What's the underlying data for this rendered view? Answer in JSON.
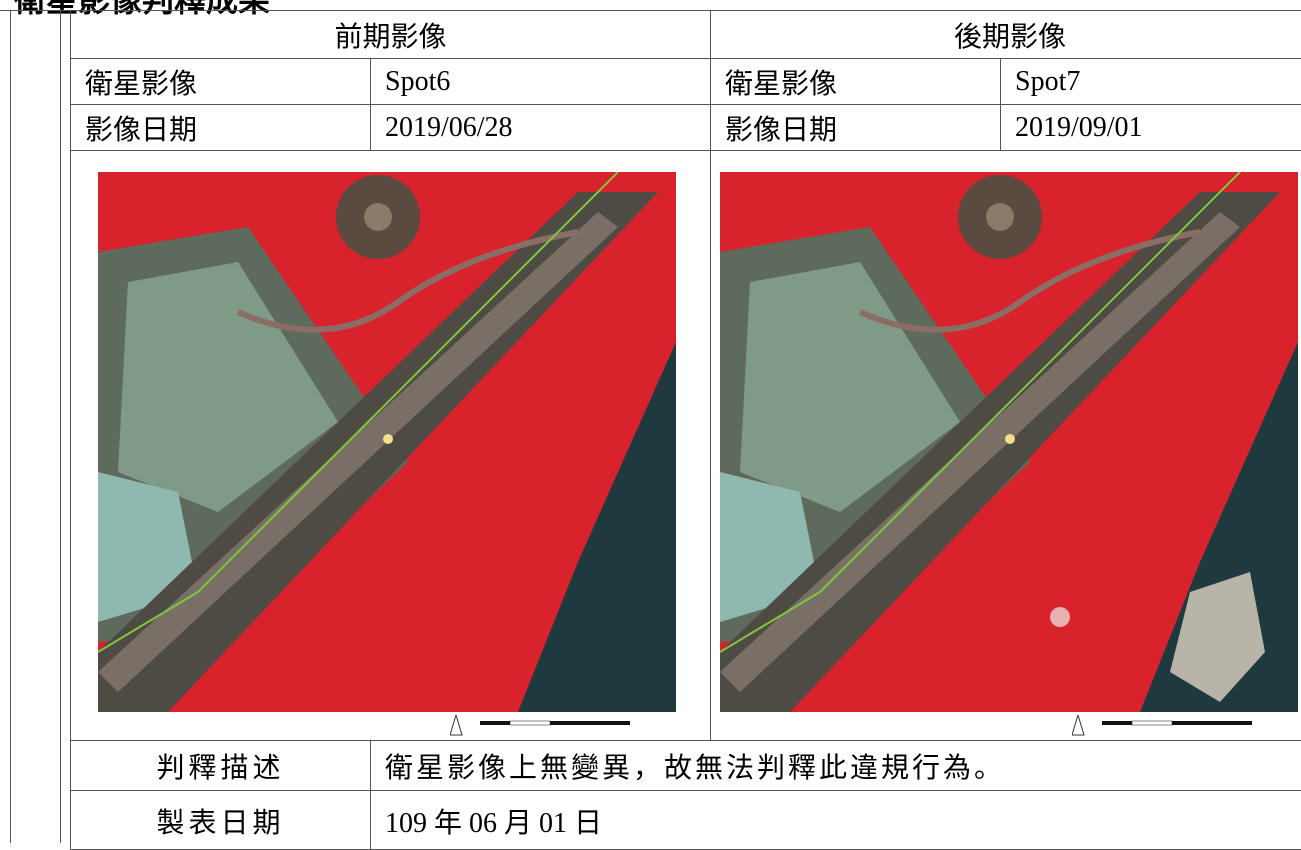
{
  "header": {
    "title": "衛星影像判釋成果"
  },
  "table": {
    "columns": [
      "前期影像",
      "後期影像"
    ],
    "rows": [
      [
        "衛星影像",
        "Spot6",
        "衛星影像",
        "Spot7"
      ],
      [
        "影像日期",
        "2019/06/28",
        "影像日期",
        "2019/09/01"
      ]
    ],
    "description": {
      "label": "判釋描述",
      "text": "衛星影像上無變異，故無法判釋此違規行為。"
    },
    "date": {
      "label": "製表日期",
      "text": "109 年 06 月 01 日"
    }
  }
}
